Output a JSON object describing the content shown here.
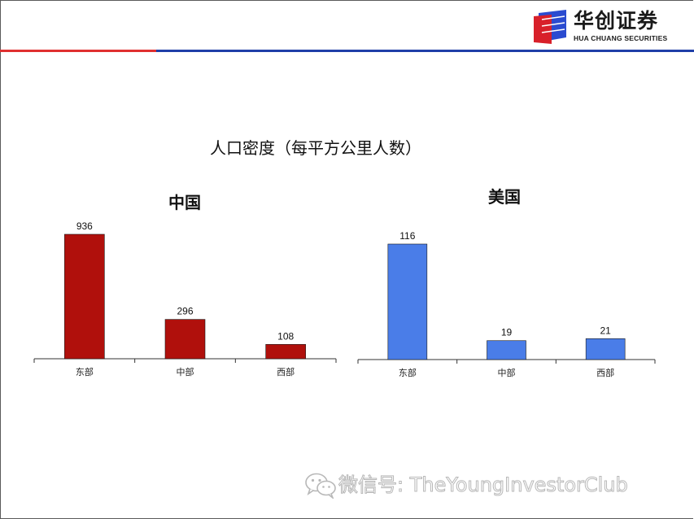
{
  "header": {
    "logo_cn": "华创证券",
    "logo_en": "HUA CHUANG SECURITIES",
    "accent_red": "#e03030",
    "accent_blue": "#1f3fa8"
  },
  "main_title": "人口密度（每平方公里人数）",
  "chart_data": [
    {
      "type": "bar",
      "title": "中国",
      "categories": [
        "东部",
        "中部",
        "西部"
      ],
      "values": [
        936,
        296,
        108
      ],
      "color": "#b0100c",
      "ylim": [
        0,
        936
      ]
    },
    {
      "type": "bar",
      "title": "美国",
      "categories": [
        "东部",
        "中部",
        "西部"
      ],
      "values": [
        116,
        19,
        21
      ],
      "color": "#4a7de8",
      "ylim": [
        0,
        116
      ]
    }
  ],
  "watermark": {
    "icon": "wechat-icon",
    "text": "微信号: TheYoungInvestorClub"
  }
}
